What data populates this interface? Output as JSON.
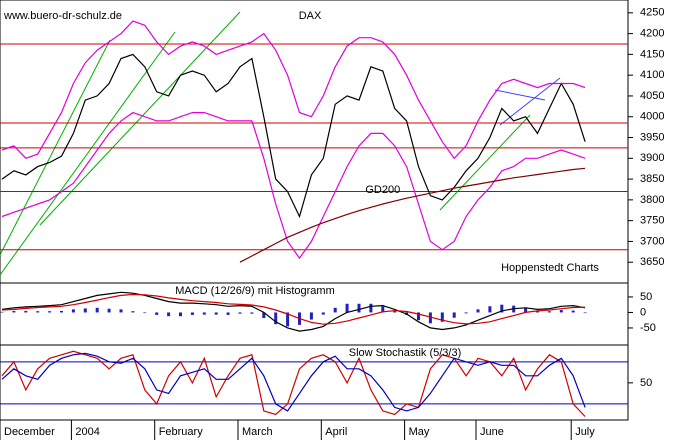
{
  "chart_data": [
    {
      "type": "line",
      "title": "DAX",
      "annotations": [
        "www.buero-dr-schulz.de",
        "Hoppenstedt Charts"
      ],
      "categories": [
        "December",
        null,
        null,
        null,
        null,
        null,
        "2004",
        null,
        null,
        null,
        null,
        null,
        null,
        "February",
        null,
        null,
        null,
        null,
        null,
        null,
        "March",
        null,
        null,
        null,
        null,
        null,
        null,
        "April",
        null,
        null,
        null,
        null,
        null,
        null,
        "May",
        null,
        null,
        null,
        null,
        null,
        "June",
        null,
        null,
        null,
        null,
        null,
        null,
        null,
        "July",
        null
      ],
      "ylim": [
        3600,
        4276
      ],
      "yticks": [
        3650,
        3700,
        3750,
        3800,
        3850,
        3900,
        3950,
        4000,
        4050,
        4100,
        4150,
        4200,
        4250
      ],
      "hlines": [
        4175,
        3985,
        3925,
        3820,
        3680
      ],
      "hline_color": "#d00000",
      "series": [
        {
          "color": "#000000",
          "values": [
            3850,
            3870,
            3860,
            3880,
            3890,
            3905,
            3960,
            4040,
            4050,
            4080,
            4140,
            4150,
            4120,
            4060,
            4050,
            4100,
            4110,
            4100,
            4060,
            4080,
            4120,
            4140,
            4000,
            3850,
            3820,
            3760,
            3860,
            3900,
            4030,
            4050,
            4040,
            4120,
            4110,
            4020,
            3990,
            3880,
            3810,
            3800,
            3830,
            3870,
            3900,
            3950,
            4020,
            3990,
            4000,
            3960,
            4020,
            4080,
            4030,
            3940
          ]
        },
        {
          "color": "#e000e0",
          "values": [
            3920,
            3930,
            3900,
            3910,
            3960,
            4010,
            4080,
            4130,
            4160,
            4180,
            4200,
            4230,
            4220,
            4180,
            4150,
            4170,
            4180,
            4170,
            4150,
            4160,
            4170,
            4180,
            4200,
            4160,
            4100,
            4010,
            4000,
            4050,
            4120,
            4170,
            4190,
            4190,
            4180,
            4150,
            4100,
            4040,
            3990,
            3940,
            3900,
            3930,
            3990,
            4040,
            4080,
            4090,
            4080,
            4070,
            4080,
            4080,
            4080,
            4070
          ]
        },
        {
          "color": "#e000e0",
          "values": [
            3760,
            3770,
            3780,
            3790,
            3800,
            3820,
            3840,
            3880,
            3920,
            3960,
            3990,
            4010,
            4000,
            3990,
            3990,
            4000,
            4010,
            4010,
            4000,
            3990,
            3990,
            3990,
            3900,
            3790,
            3700,
            3660,
            3700,
            3760,
            3820,
            3880,
            3930,
            3960,
            3960,
            3930,
            3880,
            3790,
            3700,
            3680,
            3700,
            3760,
            3800,
            3830,
            3870,
            3880,
            3900,
            3900,
            3910,
            3920,
            3910,
            3900
          ]
        },
        {
          "name": "GD200",
          "color": "#800000",
          "values": [
            null,
            null,
            null,
            null,
            null,
            null,
            null,
            null,
            null,
            null,
            null,
            null,
            null,
            null,
            null,
            null,
            null,
            null,
            null,
            null,
            3650,
            3665,
            3680,
            3695,
            3710,
            3722,
            3734,
            3745,
            3755,
            3765,
            3774,
            3782,
            3790,
            3797,
            3804,
            3810,
            3816,
            3822,
            3828,
            3833,
            3838,
            3843,
            3848,
            3853,
            3857,
            3861,
            3865,
            3869,
            3873,
            3876
          ]
        }
      ]
    },
    {
      "type": "macd",
      "title": "MACD (12/26/9) mit Histogramm",
      "ylim": [
        -105,
        95
      ],
      "yticks": [
        50,
        0,
        -50
      ],
      "series": [
        {
          "color": "#000000",
          "values": [
            10,
            15,
            18,
            20,
            22,
            25,
            35,
            45,
            55,
            60,
            65,
            62,
            55,
            45,
            35,
            30,
            30,
            28,
            25,
            20,
            22,
            20,
            0,
            -30,
            -50,
            -60,
            -55,
            -45,
            -20,
            0,
            10,
            20,
            22,
            10,
            -5,
            -30,
            -50,
            -55,
            -50,
            -40,
            -25,
            -10,
            5,
            12,
            15,
            10,
            12,
            20,
            22,
            15
          ]
        },
        {
          "color": "#d00000",
          "values": [
            8,
            10,
            13,
            16,
            18,
            20,
            25,
            32,
            40,
            48,
            55,
            58,
            57,
            53,
            47,
            42,
            38,
            35,
            32,
            28,
            26,
            24,
            18,
            8,
            -5,
            -20,
            -32,
            -38,
            -35,
            -28,
            -18,
            -8,
            2,
            6,
            3,
            -5,
            -15,
            -25,
            -33,
            -37,
            -35,
            -30,
            -20,
            -10,
            0,
            5,
            8,
            12,
            16,
            17
          ]
        }
      ],
      "histogram": {
        "color": "#2020c0",
        "values": [
          2,
          5,
          5,
          4,
          4,
          5,
          10,
          13,
          15,
          12,
          10,
          4,
          -2,
          -8,
          -12,
          -12,
          -8,
          -7,
          -7,
          -8,
          -4,
          -4,
          -18,
          -38,
          -45,
          -40,
          -23,
          -7,
          15,
          28,
          28,
          28,
          20,
          4,
          -8,
          -25,
          -35,
          -30,
          -17,
          -3,
          10,
          20,
          25,
          22,
          15,
          5,
          4,
          8,
          6,
          -2
        ]
      }
    },
    {
      "type": "line",
      "title": "Slow Stochastik (5/3/3)",
      "ylim": [
        -3,
        104
      ],
      "yticks": [
        50
      ],
      "hlines": [
        80,
        20
      ],
      "hline_color": "#0000c0",
      "series": [
        {
          "color": "#d00000",
          "values": [
            60,
            80,
            40,
            70,
            85,
            90,
            95,
            90,
            85,
            70,
            85,
            90,
            40,
            20,
            60,
            80,
            50,
            85,
            30,
            60,
            85,
            90,
            10,
            5,
            20,
            70,
            85,
            90,
            80,
            50,
            85,
            40,
            10,
            5,
            20,
            15,
            70,
            90,
            85,
            60,
            85,
            80,
            60,
            85,
            40,
            70,
            90,
            80,
            20,
            2
          ]
        },
        {
          "color": "#0000c0",
          "values": [
            55,
            70,
            60,
            55,
            75,
            85,
            90,
            92,
            88,
            80,
            78,
            85,
            70,
            40,
            35,
            60,
            65,
            70,
            55,
            55,
            70,
            85,
            60,
            20,
            10,
            35,
            60,
            80,
            88,
            70,
            70,
            60,
            40,
            15,
            10,
            15,
            35,
            60,
            85,
            80,
            75,
            80,
            75,
            75,
            60,
            60,
            75,
            85,
            60,
            15
          ]
        }
      ]
    }
  ]
}
